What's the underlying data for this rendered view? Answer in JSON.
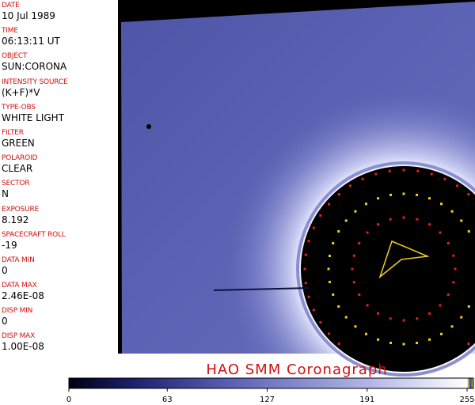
{
  "fields": [
    {
      "label": "DATE",
      "value": "10 Jul 1989"
    },
    {
      "label": "TIME",
      "value": "06:13:11 UT"
    },
    {
      "label": "OBJECT",
      "value": "SUN:CORONA"
    },
    {
      "label": "INTENSITY SOURCE",
      "value": "(K+F)*V"
    },
    {
      "label": "TYPE-OBS",
      "value": "WHITE LIGHT"
    },
    {
      "label": "FILTER",
      "value": "GREEN"
    },
    {
      "label": "POLAROID",
      "value": "CLEAR"
    },
    {
      "label": "SECTOR",
      "value": "N"
    },
    {
      "label": "EXPOSURE",
      "value": "8.192"
    },
    {
      "label": "SPACECRAFT ROLL",
      "value": "-19"
    },
    {
      "label": "DATA MIN",
      "value": "0"
    },
    {
      "label": "DATA MAX",
      "value": "2.46E-08"
    },
    {
      "label": "DISP MIN",
      "value": "0"
    },
    {
      "label": "DISP MAX",
      "value": "1.00E-08"
    }
  ],
  "title": "HAO SMM Coronagraph",
  "colorbar": {
    "lim": [
      0,
      255
    ],
    "ticks": [
      0,
      63,
      127,
      191,
      255
    ]
  }
}
